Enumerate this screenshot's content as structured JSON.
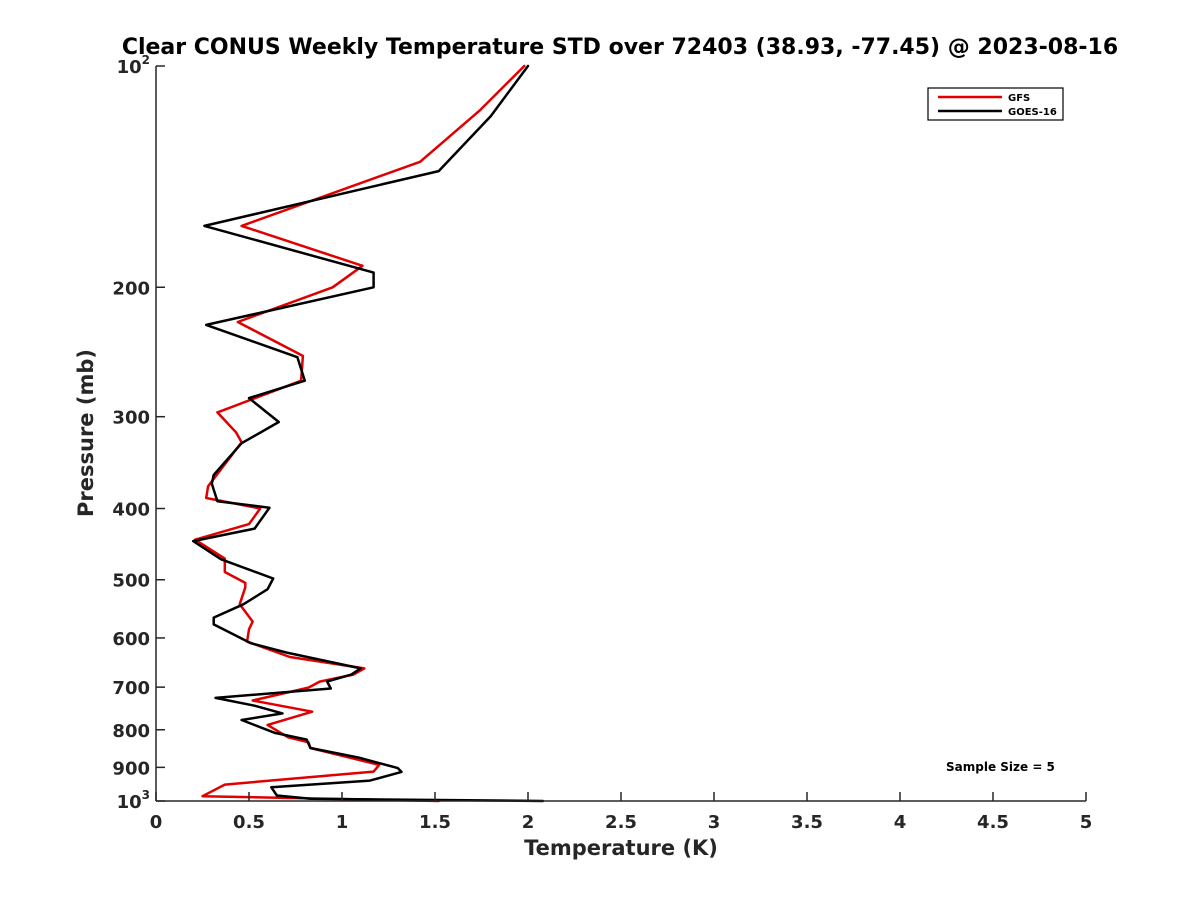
{
  "chart_data": {
    "type": "line",
    "title": "Clear CONUS Weekly Temperature STD over 72403 (38.93, -77.45) @ 2023-08-16",
    "xlabel": "Temperature (K)",
    "ylabel": "Pressure (mb)",
    "xlim": [
      0,
      5
    ],
    "ylim": [
      100,
      1000
    ],
    "y_scale": "log",
    "y_reversed": true,
    "grid": false,
    "legend_position": "top-right",
    "x_ticks": [
      "0",
      "0.5",
      "1",
      "1.5",
      "2",
      "2.5",
      "3",
      "3.5",
      "4",
      "4.5",
      "5"
    ],
    "x_tick_values": [
      0,
      0.5,
      1,
      1.5,
      2,
      2.5,
      3,
      3.5,
      4,
      4.5,
      5
    ],
    "y_ticks": [
      {
        "value": 100,
        "base": "10",
        "exp": "2"
      },
      {
        "value": 200,
        "label": "200"
      },
      {
        "value": 300,
        "label": "300"
      },
      {
        "value": 400,
        "label": "400"
      },
      {
        "value": 500,
        "label": "500"
      },
      {
        "value": 600,
        "label": "600"
      },
      {
        "value": 700,
        "label": "700"
      },
      {
        "value": 800,
        "label": "800"
      },
      {
        "value": 900,
        "label": "900"
      },
      {
        "value": 1000,
        "base": "10",
        "exp": "3"
      }
    ],
    "annotation": "Sample Size = 5",
    "series": [
      {
        "name": "GFS",
        "color": "#e00000",
        "points": [
          [
            1.98,
            100
          ],
          [
            1.74,
            115
          ],
          [
            1.42,
            135
          ],
          [
            0.46,
            165
          ],
          [
            1.11,
            187
          ],
          [
            0.95,
            200
          ],
          [
            0.44,
            223
          ],
          [
            0.79,
            248
          ],
          [
            0.78,
            268
          ],
          [
            0.33,
            296
          ],
          [
            0.43,
            315
          ],
          [
            0.46,
            325
          ],
          [
            0.28,
            373
          ],
          [
            0.27,
            387
          ],
          [
            0.56,
            400
          ],
          [
            0.5,
            420
          ],
          [
            0.21,
            441
          ],
          [
            0.37,
            468
          ],
          [
            0.37,
            488
          ],
          [
            0.48,
            505
          ],
          [
            0.48,
            512
          ],
          [
            0.45,
            540
          ],
          [
            0.52,
            570
          ],
          [
            0.5,
            584
          ],
          [
            0.49,
            607
          ],
          [
            0.72,
            637
          ],
          [
            1.12,
            660
          ],
          [
            1.06,
            673
          ],
          [
            0.88,
            688
          ],
          [
            0.82,
            701
          ],
          [
            0.52,
            730
          ],
          [
            0.84,
            756
          ],
          [
            0.6,
            788
          ],
          [
            0.71,
            819
          ],
          [
            0.82,
            832
          ],
          [
            0.83,
            847
          ],
          [
            1.2,
            893
          ],
          [
            1.17,
            912
          ],
          [
            0.37,
            950
          ],
          [
            0.25,
            985
          ],
          [
            1.52,
            1000
          ]
        ]
      },
      {
        "name": "GOES-16",
        "color": "#000000",
        "points": [
          [
            2.0,
            100
          ],
          [
            1.8,
            117
          ],
          [
            1.52,
            139
          ],
          [
            0.26,
            165
          ],
          [
            1.17,
            191
          ],
          [
            1.17,
            200
          ],
          [
            0.27,
            225
          ],
          [
            0.76,
            249
          ],
          [
            0.8,
            268
          ],
          [
            0.5,
            283
          ],
          [
            0.66,
            305
          ],
          [
            0.46,
            326
          ],
          [
            0.31,
            360
          ],
          [
            0.3,
            370
          ],
          [
            0.33,
            391
          ],
          [
            0.61,
            399
          ],
          [
            0.53,
            426
          ],
          [
            0.2,
            443
          ],
          [
            0.35,
            469
          ],
          [
            0.63,
            498
          ],
          [
            0.6,
            515
          ],
          [
            0.47,
            540
          ],
          [
            0.31,
            563
          ],
          [
            0.31,
            575
          ],
          [
            0.51,
            610
          ],
          [
            0.7,
            628
          ],
          [
            1.1,
            660
          ],
          [
            1.05,
            673
          ],
          [
            0.92,
            688
          ],
          [
            0.94,
            703
          ],
          [
            0.32,
            724
          ],
          [
            0.53,
            742
          ],
          [
            0.68,
            760
          ],
          [
            0.46,
            776
          ],
          [
            0.64,
            808
          ],
          [
            0.81,
            825
          ],
          [
            0.83,
            847
          ],
          [
            1.09,
            873
          ],
          [
            1.3,
            902
          ],
          [
            1.32,
            913
          ],
          [
            1.15,
            938
          ],
          [
            0.62,
            958
          ],
          [
            0.65,
            983
          ],
          [
            0.83,
            993
          ],
          [
            2.08,
            1000
          ]
        ]
      }
    ]
  }
}
